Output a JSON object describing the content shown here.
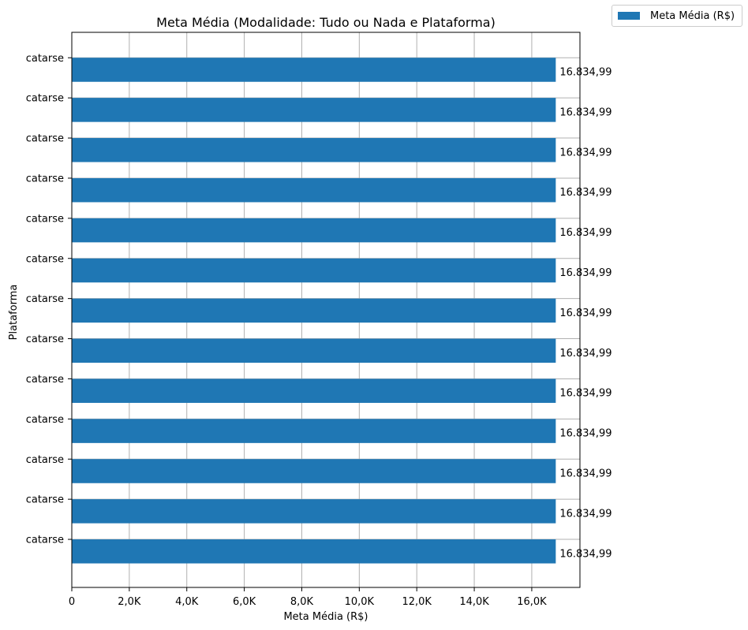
{
  "chart_data": {
    "type": "bar",
    "orientation": "horizontal",
    "title": "Meta Média (Modalidade: Tudo ou Nada e Plataforma)",
    "xlabel": "Meta Média (R$)",
    "ylabel": "Plataforma",
    "categories": [
      "catarse",
      "catarse",
      "catarse",
      "catarse",
      "catarse",
      "catarse",
      "catarse",
      "catarse",
      "catarse",
      "catarse",
      "catarse",
      "catarse",
      "catarse"
    ],
    "series": [
      {
        "name": "Meta Média (R$)",
        "values": [
          16834.99,
          16834.99,
          16834.99,
          16834.99,
          16834.99,
          16834.99,
          16834.99,
          16834.99,
          16834.99,
          16834.99,
          16834.99,
          16834.99,
          16834.99
        ],
        "color": "#1f77b4"
      }
    ],
    "data_labels": [
      "16.834,99",
      "16.834,99",
      "16.834,99",
      "16.834,99",
      "16.834,99",
      "16.834,99",
      "16.834,99",
      "16.834,99",
      "16.834,99",
      "16.834,99",
      "16.834,99",
      "16.834,99",
      "16.834,99"
    ],
    "xlim": [
      0,
      17676
    ],
    "xticks": [
      0,
      2000,
      4000,
      6000,
      8000,
      10000,
      12000,
      14000,
      16000
    ],
    "xtick_labels": [
      "0",
      "2,0K",
      "4,0K",
      "6,0K",
      "8,0K",
      "10,0K",
      "12,0K",
      "14,0K",
      "16,0K"
    ],
    "grid": true,
    "legend": {
      "position": "outside-top-right",
      "entries": [
        "Meta Média (R$)"
      ]
    }
  }
}
